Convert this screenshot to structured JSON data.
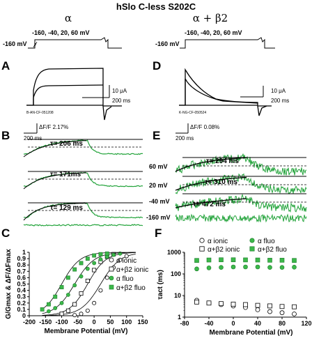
{
  "title": "hSlo C-less S202C",
  "columns": [
    {
      "label": "α",
      "protocol_hold": "-160 mV",
      "protocol_steps": "-160, -40, 20, 60 mV"
    },
    {
      "label": "α + β2",
      "protocol_hold": "-160 mV",
      "protocol_steps": "-160, -40, 20, 60 mV"
    }
  ],
  "panels": {
    "A": {
      "letter": "A",
      "scale_current": "10 μA",
      "scale_time": "200 ms",
      "record_id": "B-AN-CF-051208"
    },
    "D": {
      "letter": "D",
      "scale_current": "10 μA",
      "scale_time": "200 ms",
      "record_id": "K-NG-CF-050524"
    },
    "B": {
      "letter": "B",
      "scale_fluo": "ΔF/F 2.17%",
      "scale_time": "200 ms",
      "taus": [
        "τ= 206 ms",
        "τ= 171ms",
        "τ= 129 ms"
      ]
    },
    "E": {
      "letter": "E",
      "scale_fluo": "ΔF/F 0.08%",
      "scale_time": "200 ms",
      "taus": [
        "τ= 294 ms",
        "τ= 310 ms",
        "τ= 472 ms"
      ],
      "voltages": [
        "60 mV",
        "20 mV",
        "-40 mV",
        "-160 mV"
      ]
    }
  },
  "chart_data": [
    {
      "panel": "C",
      "type": "scatter",
      "xlabel": "Membrane Potential (mV)",
      "ylabel": "G/Gmax & ΔF/ΔFmax",
      "xlim": [
        -200,
        150
      ],
      "ylim": [
        0,
        1
      ],
      "xticks": [
        "-200",
        "-150",
        "-100",
        "-50",
        "0",
        "50",
        "100",
        "150"
      ],
      "yticks": [
        "0",
        "0.1",
        "0.2",
        "0.3",
        "0.4",
        "0.5",
        "0.6",
        "0.7",
        "0.8",
        "0.9",
        "1"
      ],
      "legend": [
        "α ionic",
        "α+β2 ionic",
        "α fluo",
        "α+β2 fluo"
      ],
      "legend_placement": "right",
      "series": [
        {
          "name": "α ionic",
          "marker": "open-circle",
          "x": [
            -60,
            -40,
            -20,
            0,
            20,
            40,
            60,
            80,
            100
          ],
          "y": [
            0.01,
            0.03,
            0.08,
            0.2,
            0.4,
            0.6,
            0.76,
            0.88,
            0.94
          ]
        },
        {
          "name": "α+β2 ionic",
          "marker": "open-square",
          "x": [
            -100,
            -80,
            -60,
            -40,
            -20,
            0,
            20,
            40,
            60
          ],
          "y": [
            0.03,
            0.08,
            0.18,
            0.35,
            0.55,
            0.72,
            0.85,
            0.93,
            0.97
          ]
        },
        {
          "name": "α fluo",
          "marker": "filled-circle",
          "x": [
            -140,
            -120,
            -100,
            -80,
            -60,
            -40,
            -20,
            0,
            20,
            40,
            60,
            80
          ],
          "y": [
            0.07,
            0.12,
            0.2,
            0.33,
            0.48,
            0.62,
            0.74,
            0.83,
            0.89,
            0.93,
            0.96,
            0.98
          ]
        },
        {
          "name": "α+β2 fluo",
          "marker": "filled-square",
          "x": [
            -160,
            -140,
            -120,
            -100,
            -80,
            -60,
            -40,
            -20,
            0,
            20,
            40
          ],
          "y": [
            0.1,
            0.18,
            0.3,
            0.45,
            0.6,
            0.73,
            0.83,
            0.9,
            0.95,
            0.97,
            0.98
          ]
        }
      ]
    },
    {
      "panel": "F",
      "type": "scatter",
      "xlabel": "Membrane Potential (mV)",
      "ylabel": "τact (ms)",
      "yscale": "log",
      "xlim": [
        -80,
        120
      ],
      "ylim": [
        1,
        1000
      ],
      "xticks": [
        "-80",
        "-40",
        "0",
        "40",
        "80",
        "120"
      ],
      "yticks": [
        "1",
        "10",
        "100",
        "1000"
      ],
      "legend": [
        "α ionic",
        "α fluo",
        "α+β2 ionic",
        "α+β2 fluo"
      ],
      "legend_placement": "top",
      "series": [
        {
          "name": "α ionic",
          "marker": "open-circle",
          "x": [
            -60,
            -40,
            -20,
            0,
            20,
            40,
            60,
            80,
            100
          ],
          "y": [
            6,
            4.5,
            3.8,
            3.3,
            2.8,
            2.2,
            1.8,
            1.6,
            1.4
          ]
        },
        {
          "name": "α+β2 ionic",
          "marker": "open-square",
          "x": [
            -60,
            -40,
            -20,
            0,
            20,
            40,
            60,
            80,
            100
          ],
          "y": [
            5,
            4.5,
            4.2,
            4,
            3.8,
            3.5,
            3.3,
            3.1,
            3
          ]
        },
        {
          "name": "α fluo",
          "marker": "filled-circle",
          "x": [
            -60,
            -40,
            -20,
            0,
            20,
            40,
            60,
            80,
            100
          ],
          "y": [
            170,
            190,
            200,
            210,
            210,
            210,
            200,
            200,
            205
          ]
        },
        {
          "name": "α+β2 fluo",
          "marker": "filled-square",
          "x": [
            -60,
            -40,
            -20,
            0,
            20,
            40,
            60,
            80,
            100
          ],
          "y": [
            420,
            440,
            450,
            450,
            445,
            440,
            430,
            430,
            420
          ]
        }
      ]
    }
  ]
}
